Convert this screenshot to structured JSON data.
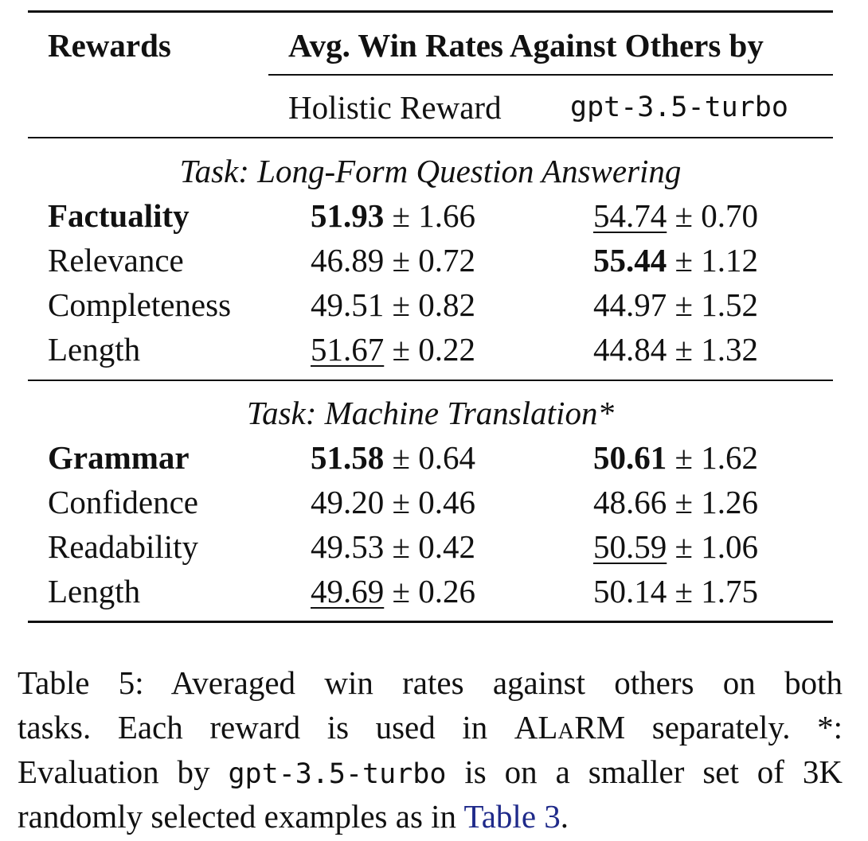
{
  "header": {
    "rewards": "Rewards",
    "group": "Avg. Win Rates Against Others by",
    "col1": "Holistic Reward",
    "col2": "gpt-3.5-turbo"
  },
  "sections": [
    {
      "title": "Task: Long-Form Question Answering",
      "rows": [
        {
          "name": "Factuality",
          "bold": true,
          "c1": {
            "v": "51.93",
            "pm": "± 1.66",
            "style": "bold"
          },
          "c2": {
            "v": "54.74",
            "pm": "± 0.70",
            "style": "underline"
          }
        },
        {
          "name": "Relevance",
          "bold": false,
          "c1": {
            "v": "46.89",
            "pm": "± 0.72",
            "style": ""
          },
          "c2": {
            "v": "55.44",
            "pm": "± 1.12",
            "style": "bold"
          }
        },
        {
          "name": "Completeness",
          "bold": false,
          "c1": {
            "v": "49.51",
            "pm": "± 0.82",
            "style": ""
          },
          "c2": {
            "v": "44.97",
            "pm": "± 1.52",
            "style": ""
          }
        },
        {
          "name": "Length",
          "bold": false,
          "c1": {
            "v": "51.67",
            "pm": "± 0.22",
            "style": "underline"
          },
          "c2": {
            "v": "44.84",
            "pm": "± 1.32",
            "style": ""
          }
        }
      ]
    },
    {
      "title": "Task: Machine Translation*",
      "rows": [
        {
          "name": "Grammar",
          "bold": true,
          "c1": {
            "v": "51.58",
            "pm": "± 0.64",
            "style": "bold"
          },
          "c2": {
            "v": "50.61",
            "pm": "± 1.62",
            "style": "bold"
          }
        },
        {
          "name": "Confidence",
          "bold": false,
          "c1": {
            "v": "49.20",
            "pm": "± 0.46",
            "style": ""
          },
          "c2": {
            "v": "48.66",
            "pm": "± 1.26",
            "style": ""
          }
        },
        {
          "name": "Readability",
          "bold": false,
          "c1": {
            "v": "49.53",
            "pm": "± 0.42",
            "style": ""
          },
          "c2": {
            "v": "50.59",
            "pm": "± 1.06",
            "style": "underline"
          }
        },
        {
          "name": "Length",
          "bold": false,
          "c1": {
            "v": "49.69",
            "pm": "± 0.26",
            "style": "underline"
          },
          "c2": {
            "v": "50.14",
            "pm": "± 1.75",
            "style": ""
          }
        }
      ]
    }
  ],
  "caption": {
    "l1": "Table 5:  Averaged win rates against others on both",
    "l2a": "tasks. Each reward is used in ",
    "alarm": "ALaRM",
    "l2b": " separately. *:",
    "l3a": "Evaluation by ",
    "l3code": "gpt-3.5-turbo",
    "l3b": " is on a smaller set of 3K",
    "l4a": "randomly selected examples as in ",
    "l4link": "Table 3",
    "l4b": "."
  }
}
